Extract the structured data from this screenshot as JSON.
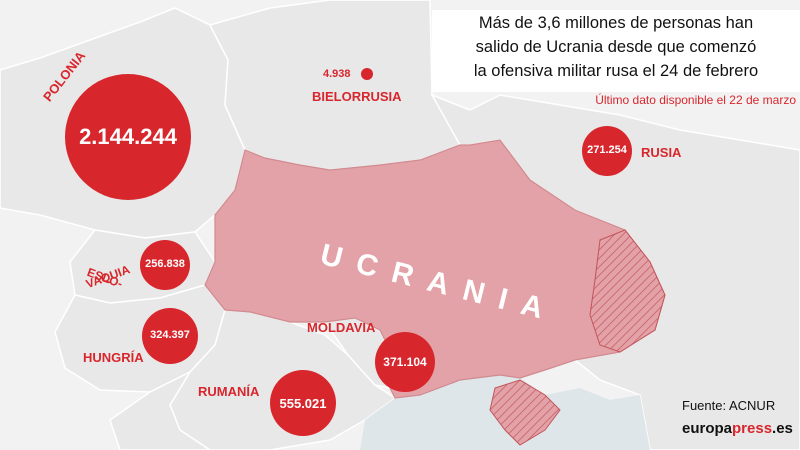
{
  "title": {
    "line1": "Más de 3,6 millones de personas han",
    "line2": "salido de Ucrania desde que comenzó",
    "line3": "la ofensiva militar rusa el 24 de febrero"
  },
  "subtitle": "Último dato disponible el 22 de marzo",
  "source": "Fuente: ACNUR",
  "brand": {
    "part1": "europa",
    "part2": "press",
    "part3": ".es"
  },
  "ukraine_label": "UCRANIA",
  "colors": {
    "accent": "#d8262d",
    "ukraine_fill": "#e3a2a7",
    "background": "#f2f2f2",
    "land": "#e6e6e6"
  },
  "countries": [
    {
      "id": "polonia",
      "name": "POLONIA",
      "value": "2.144.244",
      "refugees": 2144244
    },
    {
      "id": "bielorrusia",
      "name": "BIELORRUSIA",
      "value": "4.938",
      "refugees": 4938
    },
    {
      "id": "rusia",
      "name": "RUSIA",
      "value": "271.254",
      "refugees": 271254
    },
    {
      "id": "eslovaquia",
      "name_line1": "ESLO-",
      "name_line2": "VAQUIA",
      "value": "256.838",
      "refugees": 256838
    },
    {
      "id": "hungria",
      "name": "HUNGRÍA",
      "value": "324.397",
      "refugees": 324397
    },
    {
      "id": "moldavia",
      "name": "MOLDAVIA",
      "value": "371.104",
      "refugees": 371104
    },
    {
      "id": "rumania",
      "name": "RUMANÍA",
      "value": "555.021",
      "refugees": 555021
    }
  ]
}
